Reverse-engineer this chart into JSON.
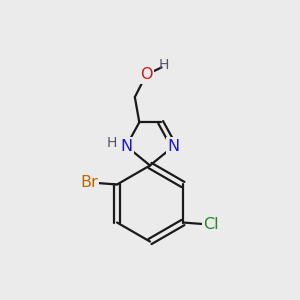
{
  "bg_color": "#ebebeb",
  "bond_color": "#1a1a1a",
  "bond_width": 1.6,
  "atom_colors": {
    "N": "#1a1acc",
    "O": "#cc1a1a",
    "Br": "#bb6600",
    "Cl": "#228822",
    "C": "#1a1a1a",
    "H": "#555566"
  },
  "font_size": 11.5
}
